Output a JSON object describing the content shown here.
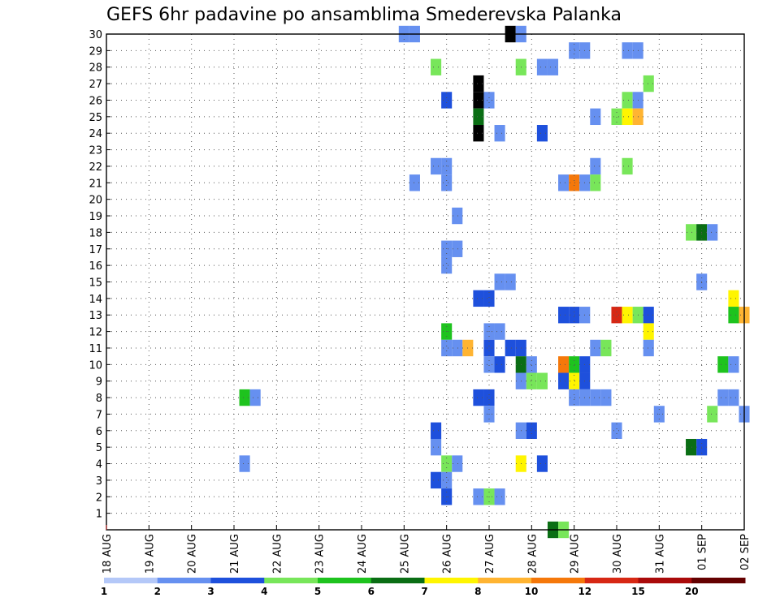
{
  "chart_data": {
    "type": "heatmap",
    "title": "GEFS 6hr padavine po ansamblima Smederevska Palanka",
    "ylim": [
      0,
      30
    ],
    "ytick_labels": [
      "1",
      "2",
      "3",
      "4",
      "5",
      "6",
      "7",
      "8",
      "9",
      "10",
      "11",
      "12",
      "13",
      "14",
      "15",
      "16",
      "17",
      "18",
      "19",
      "20",
      "21",
      "22",
      "23",
      "24",
      "25",
      "26",
      "27",
      "28",
      "29",
      "30"
    ],
    "xtick_labels": [
      "18 AUG",
      "19 AUG",
      "20 AUG",
      "21 AUG",
      "22 AUG",
      "23 AUG",
      "24 AUG",
      "25 AUG",
      "26 AUG",
      "27 AUG",
      "28 AUG",
      "29 AUG",
      "30 AUG",
      "31 AUG",
      "01 SEP",
      "02 SEP"
    ],
    "x_steps": 60,
    "grid": true,
    "colorbar": {
      "labels": [
        "1",
        "2",
        "3",
        "4",
        "5",
        "6",
        "7",
        "8",
        "10",
        "12",
        "15",
        "20"
      ],
      "colors": [
        "#b4c8f8",
        "#6690f0",
        "#1e50dc",
        "#78e65a",
        "#1ec31e",
        "#0a6e14",
        "#fff500",
        "#ffb432",
        "#f5780a",
        "#d72814",
        "#aa0a0a",
        "#640000"
      ]
    },
    "cells": [
      [
        30,
        28,
        1
      ],
      [
        30,
        29,
        1
      ],
      [
        30,
        38,
        13
      ],
      [
        30,
        39,
        1
      ],
      [
        29,
        44,
        1
      ],
      [
        29,
        45,
        1
      ],
      [
        29,
        49,
        1
      ],
      [
        29,
        50,
        1
      ],
      [
        28,
        31,
        3
      ],
      [
        28,
        39,
        3
      ],
      [
        28,
        41,
        1
      ],
      [
        28,
        42,
        1
      ],
      [
        27,
        35,
        14
      ],
      [
        27,
        51,
        3
      ],
      [
        26,
        32,
        2
      ],
      [
        26,
        35,
        14
      ],
      [
        26,
        36,
        1
      ],
      [
        26,
        49,
        3
      ],
      [
        26,
        50,
        1
      ],
      [
        25,
        35,
        5
      ],
      [
        25,
        46,
        1
      ],
      [
        25,
        48,
        3
      ],
      [
        25,
        49,
        6
      ],
      [
        25,
        50,
        7
      ],
      [
        24,
        35,
        15
      ],
      [
        24,
        37,
        1
      ],
      [
        24,
        41,
        2
      ],
      [
        22,
        31,
        1
      ],
      [
        22,
        32,
        1
      ],
      [
        22,
        46,
        1
      ],
      [
        22,
        49,
        3
      ],
      [
        21,
        29,
        1
      ],
      [
        21,
        32,
        1
      ],
      [
        21,
        43,
        1
      ],
      [
        21,
        44,
        8
      ],
      [
        21,
        45,
        1
      ],
      [
        21,
        46,
        3
      ],
      [
        19,
        33,
        1
      ],
      [
        18,
        55,
        3
      ],
      [
        18,
        56,
        5
      ],
      [
        18,
        57,
        1
      ],
      [
        17,
        32,
        1
      ],
      [
        17,
        33,
        1
      ],
      [
        16,
        32,
        1
      ],
      [
        15,
        37,
        1
      ],
      [
        15,
        38,
        1
      ],
      [
        15,
        56,
        1
      ],
      [
        14,
        35,
        2
      ],
      [
        14,
        36,
        2
      ],
      [
        14,
        59,
        6
      ],
      [
        13,
        43,
        2
      ],
      [
        13,
        44,
        2
      ],
      [
        13,
        45,
        1
      ],
      [
        13,
        48,
        9
      ],
      [
        13,
        49,
        6
      ],
      [
        13,
        50,
        3
      ],
      [
        13,
        51,
        2
      ],
      [
        13,
        59,
        4
      ],
      [
        13,
        60,
        7
      ],
      [
        12,
        32,
        4
      ],
      [
        12,
        36,
        1
      ],
      [
        12,
        37,
        1
      ],
      [
        12,
        51,
        6
      ],
      [
        11,
        32,
        1
      ],
      [
        11,
        33,
        1
      ],
      [
        11,
        34,
        7
      ],
      [
        11,
        36,
        2
      ],
      [
        11,
        38,
        2
      ],
      [
        11,
        39,
        2
      ],
      [
        11,
        46,
        1
      ],
      [
        11,
        47,
        3
      ],
      [
        11,
        51,
        1
      ],
      [
        10,
        36,
        1
      ],
      [
        10,
        37,
        2
      ],
      [
        10,
        39,
        5
      ],
      [
        10,
        40,
        1
      ],
      [
        10,
        43,
        8
      ],
      [
        10,
        44,
        4
      ],
      [
        10,
        45,
        2
      ],
      [
        10,
        58,
        4
      ],
      [
        10,
        59,
        1
      ],
      [
        9,
        39,
        1
      ],
      [
        9,
        40,
        3
      ],
      [
        9,
        41,
        3
      ],
      [
        9,
        43,
        2
      ],
      [
        9,
        44,
        6
      ],
      [
        9,
        45,
        2
      ],
      [
        8,
        13,
        4
      ],
      [
        8,
        14,
        1
      ],
      [
        8,
        35,
        2
      ],
      [
        8,
        36,
        2
      ],
      [
        8,
        44,
        1
      ],
      [
        8,
        45,
        1
      ],
      [
        8,
        46,
        1
      ],
      [
        8,
        47,
        1
      ],
      [
        8,
        58,
        1
      ],
      [
        8,
        59,
        1
      ],
      [
        7,
        36,
        1
      ],
      [
        7,
        52,
        1
      ],
      [
        7,
        57,
        3
      ],
      [
        7,
        60,
        1
      ],
      [
        6,
        31,
        2
      ],
      [
        6,
        39,
        1
      ],
      [
        6,
        40,
        2
      ],
      [
        6,
        48,
        1
      ],
      [
        5,
        31,
        1
      ],
      [
        5,
        55,
        5
      ],
      [
        5,
        56,
        2
      ],
      [
        4,
        13,
        1
      ],
      [
        4,
        32,
        3
      ],
      [
        4,
        33,
        1
      ],
      [
        4,
        39,
        6
      ],
      [
        4,
        41,
        2
      ],
      [
        3,
        31,
        2
      ],
      [
        3,
        32,
        1
      ],
      [
        2,
        32,
        2
      ],
      [
        2,
        35,
        1
      ],
      [
        2,
        36,
        3
      ],
      [
        2,
        37,
        1
      ],
      [
        0,
        42,
        5
      ],
      [
        0,
        43,
        3
      ]
    ]
  }
}
